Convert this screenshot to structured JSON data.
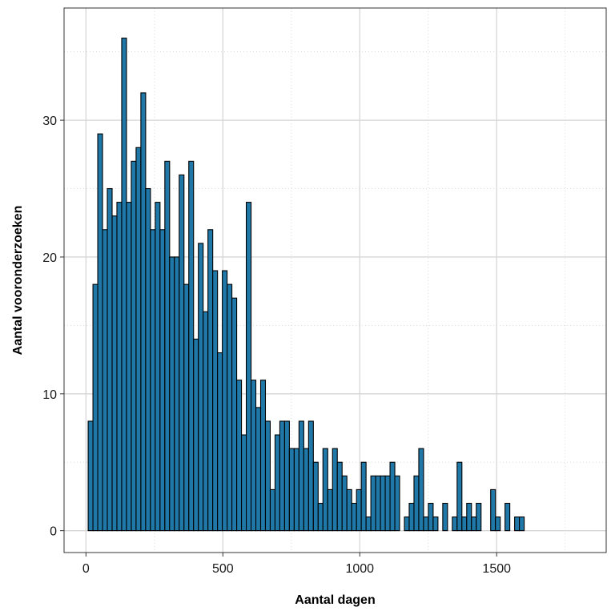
{
  "chart_data": {
    "type": "bar",
    "xlabel": "Aantal dagen",
    "ylabel": "Aantal vooronderzoeken",
    "bin_width": 17.5,
    "bin_start": 8,
    "x_ticks": [
      0,
      500,
      1000,
      1500
    ],
    "y_ticks": [
      0,
      10,
      20,
      30
    ],
    "xlim": [
      -80,
      1900
    ],
    "ylim": [
      -1.6,
      38.2
    ],
    "grid": true,
    "colors": {
      "bar_fill": "#1f78a8",
      "bar_stroke": "#000000",
      "grid_major": "#d6d6d6",
      "grid_minor": "#dcdcdc",
      "panel_border": "#333333"
    },
    "values": [
      8,
      18,
      29,
      22,
      25,
      23,
      24,
      36,
      24,
      27,
      28,
      32,
      25,
      22,
      24,
      22,
      27,
      20,
      20,
      26,
      18,
      27,
      14,
      21,
      16,
      22,
      19,
      13,
      19,
      18,
      17,
      11,
      7,
      24,
      11,
      9,
      11,
      8,
      3,
      7,
      8,
      8,
      6,
      6,
      8,
      6,
      8,
      5,
      2,
      6,
      3,
      6,
      5,
      4,
      3,
      2,
      3,
      5,
      1,
      4,
      4,
      4,
      4,
      5,
      4,
      0,
      1,
      2,
      4,
      6,
      1,
      2,
      1,
      0,
      2,
      0,
      1,
      5,
      1,
      2,
      1,
      2,
      0,
      0,
      3,
      1,
      0,
      2,
      0,
      1,
      1
    ]
  }
}
